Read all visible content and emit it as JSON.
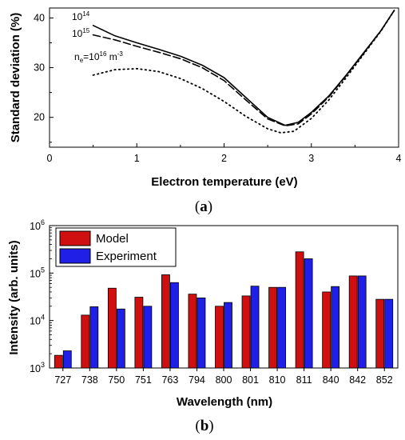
{
  "chart_data": [
    {
      "type": "line",
      "panel_label": "a",
      "xlabel": "Electron temperature (eV)",
      "ylabel": "Standard deviation (%)",
      "xlim": [
        0,
        4
      ],
      "ylim": [
        14,
        42
      ],
      "x_ticks": [
        0,
        1,
        2,
        3,
        4
      ],
      "y_ticks": [
        20,
        30,
        40
      ],
      "series": [
        {
          "name": "10^14",
          "label_parts": {
            "base": "10",
            "sup": "14"
          },
          "style": "solid",
          "x": [
            0.5,
            0.75,
            1.0,
            1.25,
            1.5,
            1.75,
            2.0,
            2.25,
            2.5,
            2.7,
            2.85,
            3.0,
            3.2,
            3.4,
            3.6,
            3.8,
            3.95
          ],
          "y": [
            38.5,
            36.4,
            35.0,
            33.7,
            32.3,
            30.5,
            28.0,
            24.0,
            20.0,
            18.4,
            19.0,
            21.0,
            24.3,
            28.5,
            33.0,
            37.5,
            41.5
          ]
        },
        {
          "name": "10^15",
          "label_parts": {
            "base": "10",
            "sup": "15"
          },
          "style": "dashed",
          "x": [
            0.5,
            0.75,
            1.0,
            1.25,
            1.5,
            1.75,
            2.0,
            2.25,
            2.5,
            2.7,
            2.85,
            3.0,
            3.2,
            3.4,
            3.6,
            3.8,
            3.95
          ],
          "y": [
            36.6,
            35.6,
            34.3,
            33.1,
            31.8,
            30.0,
            27.4,
            23.5,
            19.7,
            18.3,
            18.7,
            20.7,
            24.1,
            28.4,
            32.9,
            37.5,
            41.5
          ]
        },
        {
          "name": "n_e=10^16 m^-3",
          "label_parts": {
            "pre": "n",
            "sub": "e",
            "mid": "=10",
            "sup": "16",
            "unit": " m",
            "unit_sup": "-3"
          },
          "style": "dotted",
          "x": [
            0.5,
            0.75,
            1.0,
            1.25,
            1.5,
            1.75,
            2.0,
            2.25,
            2.5,
            2.65,
            2.8,
            3.0,
            3.2,
            3.4,
            3.6,
            3.8,
            3.95
          ],
          "y": [
            28.5,
            29.6,
            29.8,
            29.2,
            27.8,
            25.8,
            23.2,
            20.2,
            17.7,
            16.9,
            17.2,
            19.8,
            23.5,
            28.0,
            32.7,
            37.4,
            41.5
          ]
        }
      ]
    },
    {
      "type": "bar",
      "panel_label": "b",
      "xlabel": "Wavelength (nm)",
      "ylabel": "Intensity (arb. units)",
      "y_scale": "log",
      "ylim": [
        1000,
        1000000
      ],
      "y_ticks": [
        {
          "value": 1000,
          "base": "10",
          "exp": "3"
        },
        {
          "value": 10000,
          "base": "10",
          "exp": "4"
        },
        {
          "value": 100000,
          "base": "10",
          "exp": "5"
        },
        {
          "value": 1000000,
          "base": "10",
          "exp": "6"
        }
      ],
      "categories": [
        "727",
        "738",
        "750",
        "751",
        "763",
        "794",
        "800",
        "801",
        "810",
        "811",
        "840",
        "842",
        "852"
      ],
      "series": [
        {
          "name": "Model",
          "color": "#d01010",
          "values": [
            1850,
            13000,
            48000,
            31000,
            92000,
            36000,
            20000,
            33000,
            50000,
            280000,
            40000,
            87000,
            28000
          ]
        },
        {
          "name": "Experiment",
          "color": "#1f1fe8",
          "values": [
            2300,
            19500,
            17500,
            20000,
            63000,
            30000,
            24000,
            53000,
            50000,
            200000,
            52000,
            87000,
            28000
          ]
        }
      ],
      "legend_position": "top-left"
    }
  ]
}
